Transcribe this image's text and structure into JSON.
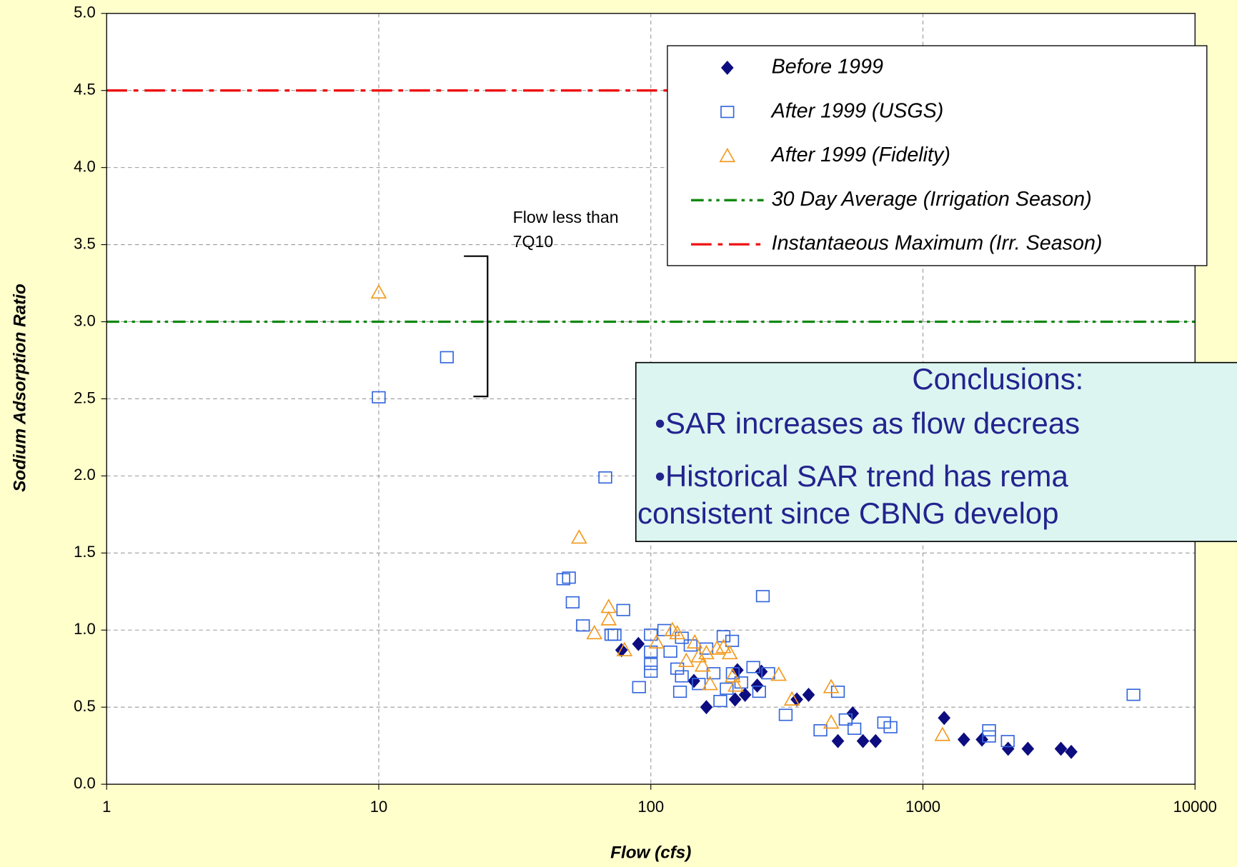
{
  "chart_data": {
    "type": "scatter",
    "x_label": "Flow (cfs)",
    "y_label": "Sodium Adsorption Ratio",
    "xlog": true,
    "grid": true,
    "xlim": [
      1,
      10000
    ],
    "xticks": [
      1,
      10,
      100,
      1000,
      10000
    ],
    "ylim": [
      0,
      5
    ],
    "yticks": [
      {
        "value": 0,
        "label": "0.0"
      },
      {
        "value": 0.5,
        "label": "0.5"
      },
      {
        "value": 1,
        "label": "1.0"
      },
      {
        "value": 1.5,
        "label": "1.5"
      },
      {
        "value": 2,
        "label": "2.0"
      },
      {
        "value": 2.5,
        "label": "2.5"
      },
      {
        "value": 3,
        "label": "3.0"
      },
      {
        "value": 3.5,
        "label": "3.5"
      },
      {
        "value": 4,
        "label": "4.0"
      },
      {
        "value": 4.5,
        "label": "4.5"
      },
      {
        "value": 5,
        "label": "5.0"
      }
    ],
    "series": [
      {
        "name": "Before 1999",
        "color": "#0d0d80",
        "marker": "diamond",
        "x": [
          78,
          90,
          144,
          160,
          204,
          208,
          222,
          246,
          255,
          344,
          380,
          487,
          552,
          602,
          670,
          1197,
          1414,
          1648,
          2056,
          2430,
          3214,
          3508
        ],
        "values": [
          0.87,
          0.91,
          0.67,
          0.5,
          0.55,
          0.74,
          0.58,
          0.64,
          0.73,
          0.55,
          0.58,
          0.28,
          0.46,
          0.28,
          0.28,
          0.43,
          0.29,
          0.29,
          0.23,
          0.23,
          0.23,
          0.21
        ]
      },
      {
        "name": "After 1999 (USGS)",
        "color": "#3366dd",
        "marker": "square",
        "x": [
          10,
          17.8,
          68,
          47.7,
          50,
          51.6,
          56.3,
          71.6,
          73.6,
          79.2,
          90.5,
          100,
          100,
          100,
          100,
          112,
          118,
          125,
          130,
          130,
          128,
          140,
          150,
          160,
          170,
          180,
          185,
          190,
          199,
          200,
          215,
          238,
          250,
          258,
          270,
          313,
          420,
          487,
          520,
          560,
          720,
          760,
          1750,
          1750,
          2050,
          5940
        ],
        "values": [
          2.51,
          2.77,
          1.99,
          1.33,
          1.34,
          1.18,
          1.03,
          0.97,
          0.97,
          1.13,
          0.63,
          0.97,
          0.86,
          0.78,
          0.73,
          1.0,
          0.86,
          0.75,
          0.95,
          0.7,
          0.6,
          0.9,
          0.65,
          0.88,
          0.72,
          0.54,
          0.96,
          0.62,
          0.93,
          0.72,
          0.66,
          0.76,
          0.6,
          1.22,
          0.72,
          0.45,
          0.35,
          0.6,
          0.42,
          0.36,
          0.4,
          0.37,
          0.35,
          0.31,
          0.28,
          0.58
        ]
      },
      {
        "name": "After 1999 (Fidelity)",
        "color": "#f39a1e",
        "marker": "triangle",
        "x": [
          10,
          54.5,
          62,
          70,
          70,
          80,
          105,
          120,
          125,
          135,
          145,
          150,
          155,
          160,
          165,
          175,
          185,
          195,
          200,
          205,
          295,
          330,
          460,
          460,
          1180
        ],
        "values": [
          3.19,
          1.6,
          0.98,
          1.15,
          1.07,
          0.87,
          0.92,
          1.0,
          0.98,
          0.8,
          0.92,
          0.83,
          0.77,
          0.85,
          0.65,
          0.88,
          0.89,
          0.85,
          0.7,
          0.64,
          0.71,
          0.55,
          0.63,
          0.4,
          0.32
        ]
      }
    ],
    "hlines": [
      {
        "name": "30 Day Average (Irrigation Season)",
        "color": "#118811",
        "style": "dash-dot-dot",
        "value": 3
      },
      {
        "name": "Instantaeous Maximum (Irr. Season)",
        "color": "#ee1111",
        "style": "dash-dot",
        "value": 4.5
      }
    ],
    "annotation": [
      "Flow less than",
      "7Q10"
    ],
    "conclusions": {
      "title": "Conclusions:",
      "lines": [
        "•SAR increases as flow decreas",
        "•Historical SAR trend has rema",
        "consistent since CBNG develop"
      ]
    }
  }
}
